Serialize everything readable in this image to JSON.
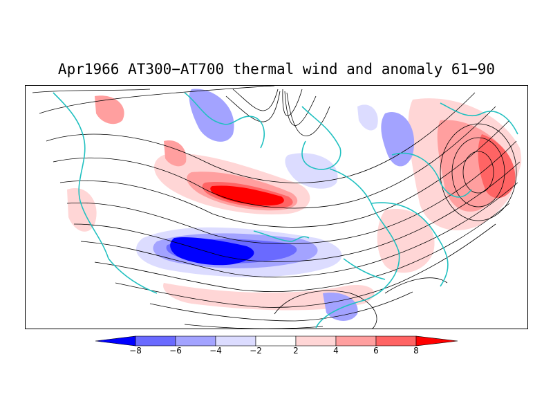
{
  "title": "Apr1966 AT300−AT700 thermal wind and anomaly 61−90",
  "legend": {
    "labels": [
      "−8",
      "−6",
      "−4",
      "−2",
      "2",
      "4",
      "6",
      "8"
    ],
    "colors": [
      "#0000ff",
      "#6a6aff",
      "#a3a3ff",
      "#dcdcff",
      "#ffffff",
      "#ffd6d6",
      "#ff9f9f",
      "#ff6464",
      "#ff0000"
    ]
  },
  "map": {
    "projection": "polar-stereographic-northern-hemisphere",
    "coastline_color": "#20c0c0",
    "streamline_color": "#000000"
  }
}
